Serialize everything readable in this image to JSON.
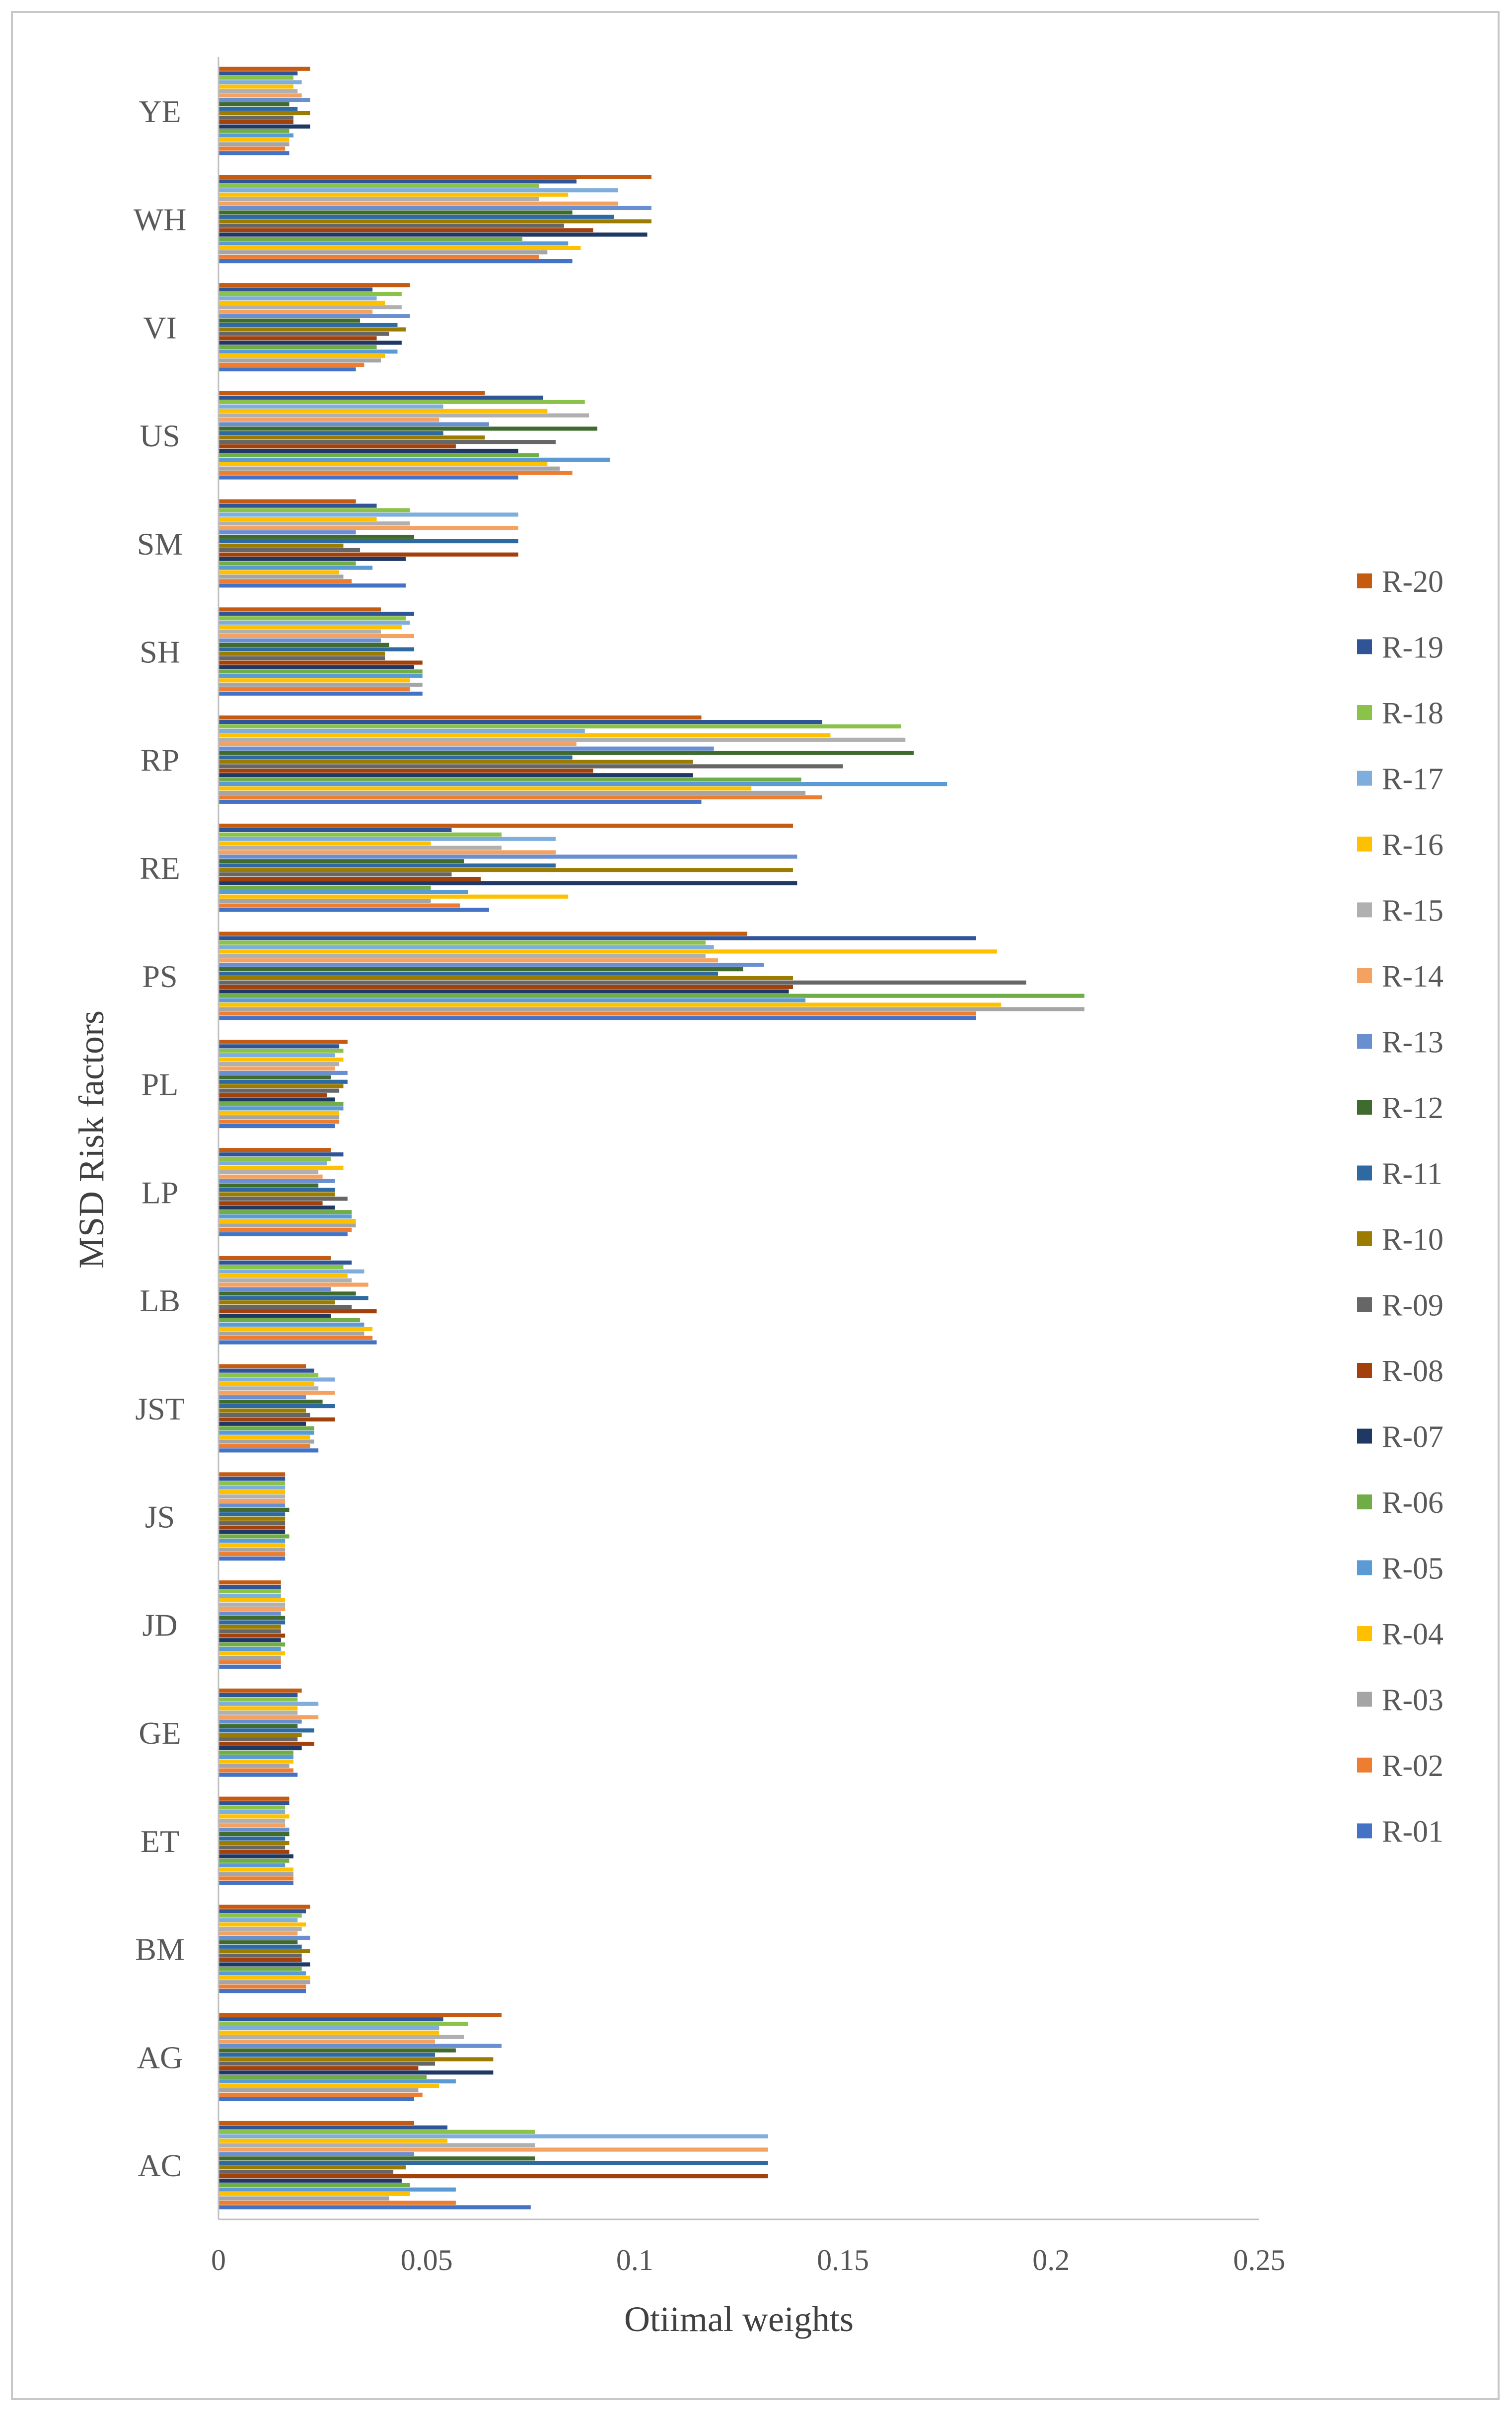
{
  "chart_data": {
    "type": "bar",
    "orientation": "horizontal",
    "title": "",
    "xlabel": "Otiimal weights",
    "ylabel": "MSD Risk factors",
    "xlim": [
      0,
      0.25
    ],
    "xticks": [
      0,
      0.05,
      0.1,
      0.15,
      0.2,
      0.25
    ],
    "xtick_labels": [
      "0",
      "0.05",
      "0.1",
      "0.15",
      "0.2",
      "0.25"
    ],
    "grid": false,
    "legend_position": "right",
    "categories": [
      "YE",
      "WH",
      "VI",
      "US",
      "SM",
      "SH",
      "RP",
      "RE",
      "PS",
      "PL",
      "LP",
      "LB",
      "JST",
      "JS",
      "JD",
      "GE",
      "ET",
      "BM",
      "AG",
      "AC"
    ],
    "series": [
      {
        "name": "R-20",
        "color": "#C55A11",
        "values": [
          0.022,
          0.104,
          0.046,
          0.064,
          0.033,
          0.039,
          0.116,
          0.138,
          0.127,
          0.031,
          0.027,
          0.027,
          0.021,
          0.016,
          0.015,
          0.02,
          0.017,
          0.022,
          0.068,
          0.047
        ]
      },
      {
        "name": "R-19",
        "color": "#2F5597",
        "values": [
          0.019,
          0.086,
          0.037,
          0.078,
          0.038,
          0.047,
          0.145,
          0.056,
          0.182,
          0.029,
          0.03,
          0.032,
          0.023,
          0.016,
          0.015,
          0.019,
          0.017,
          0.021,
          0.054,
          0.055
        ]
      },
      {
        "name": "R-18",
        "color": "#8BC34A",
        "values": [
          0.018,
          0.077,
          0.044,
          0.088,
          0.046,
          0.045,
          0.164,
          0.068,
          0.117,
          0.03,
          0.027,
          0.03,
          0.024,
          0.016,
          0.015,
          0.019,
          0.016,
          0.02,
          0.06,
          0.076
        ]
      },
      {
        "name": "R-17",
        "color": "#7FAEDD",
        "values": [
          0.02,
          0.096,
          0.038,
          0.054,
          0.072,
          0.046,
          0.088,
          0.081,
          0.119,
          0.028,
          0.026,
          0.035,
          0.028,
          0.016,
          0.015,
          0.024,
          0.016,
          0.019,
          0.053,
          0.132
        ]
      },
      {
        "name": "R-16",
        "color": "#FFC000",
        "values": [
          0.018,
          0.084,
          0.04,
          0.079,
          0.038,
          0.044,
          0.147,
          0.051,
          0.187,
          0.03,
          0.03,
          0.031,
          0.023,
          0.016,
          0.016,
          0.019,
          0.017,
          0.021,
          0.053,
          0.055
        ]
      },
      {
        "name": "R-15",
        "color": "#B0B0B0",
        "values": [
          0.019,
          0.077,
          0.044,
          0.089,
          0.046,
          0.039,
          0.165,
          0.068,
          0.117,
          0.029,
          0.024,
          0.032,
          0.024,
          0.016,
          0.016,
          0.019,
          0.016,
          0.02,
          0.059,
          0.076
        ]
      },
      {
        "name": "R-14",
        "color": "#F4A261",
        "values": [
          0.02,
          0.096,
          0.037,
          0.053,
          0.072,
          0.047,
          0.086,
          0.081,
          0.12,
          0.028,
          0.025,
          0.036,
          0.028,
          0.016,
          0.016,
          0.024,
          0.016,
          0.019,
          0.052,
          0.132
        ]
      },
      {
        "name": "R-13",
        "color": "#6A8FD0",
        "values": [
          0.022,
          0.104,
          0.046,
          0.065,
          0.033,
          0.039,
          0.119,
          0.139,
          0.131,
          0.031,
          0.028,
          0.027,
          0.021,
          0.016,
          0.015,
          0.02,
          0.017,
          0.022,
          0.068,
          0.047
        ]
      },
      {
        "name": "R-12",
        "color": "#3F6B2F",
        "values": [
          0.017,
          0.085,
          0.034,
          0.091,
          0.047,
          0.041,
          0.167,
          0.059,
          0.126,
          0.027,
          0.024,
          0.033,
          0.025,
          0.017,
          0.016,
          0.019,
          0.017,
          0.019,
          0.057,
          0.076
        ]
      },
      {
        "name": "R-11",
        "color": "#2E6AA1",
        "values": [
          0.019,
          0.095,
          0.043,
          0.054,
          0.072,
          0.047,
          0.085,
          0.081,
          0.12,
          0.031,
          0.028,
          0.036,
          0.028,
          0.016,
          0.016,
          0.023,
          0.016,
          0.02,
          0.052,
          0.132
        ]
      },
      {
        "name": "R-10",
        "color": "#9C7C00",
        "values": [
          0.022,
          0.104,
          0.045,
          0.064,
          0.03,
          0.04,
          0.114,
          0.138,
          0.138,
          0.03,
          0.028,
          0.028,
          0.021,
          0.016,
          0.015,
          0.02,
          0.017,
          0.022,
          0.066,
          0.045
        ]
      },
      {
        "name": "R-09",
        "color": "#666666",
        "values": [
          0.018,
          0.083,
          0.041,
          0.081,
          0.034,
          0.04,
          0.15,
          0.056,
          0.194,
          0.029,
          0.031,
          0.032,
          0.022,
          0.016,
          0.015,
          0.019,
          0.016,
          0.02,
          0.052,
          0.042
        ]
      },
      {
        "name": "R-08",
        "color": "#A3410C",
        "values": [
          0.018,
          0.09,
          0.038,
          0.057,
          0.072,
          0.049,
          0.09,
          0.063,
          0.138,
          0.026,
          0.025,
          0.038,
          0.028,
          0.016,
          0.016,
          0.023,
          0.017,
          0.02,
          0.048,
          0.132
        ]
      },
      {
        "name": "R-07",
        "color": "#203864",
        "values": [
          0.022,
          0.103,
          0.044,
          0.072,
          0.045,
          0.047,
          0.114,
          0.139,
          0.137,
          0.028,
          0.028,
          0.027,
          0.021,
          0.016,
          0.015,
          0.02,
          0.018,
          0.022,
          0.066,
          0.044
        ]
      },
      {
        "name": "R-06",
        "color": "#70AD47",
        "values": [
          0.017,
          0.073,
          0.038,
          0.077,
          0.033,
          0.049,
          0.14,
          0.051,
          0.208,
          0.03,
          0.032,
          0.034,
          0.023,
          0.017,
          0.016,
          0.018,
          0.017,
          0.02,
          0.05,
          0.046
        ]
      },
      {
        "name": "R-05",
        "color": "#5B9BD5",
        "values": [
          0.018,
          0.084,
          0.043,
          0.094,
          0.037,
          0.049,
          0.175,
          0.06,
          0.141,
          0.03,
          0.032,
          0.035,
          0.023,
          0.016,
          0.015,
          0.018,
          0.016,
          0.021,
          0.057,
          0.057
        ]
      },
      {
        "name": "R-04",
        "color": "#FFC000",
        "values": [
          0.017,
          0.087,
          0.04,
          0.079,
          0.029,
          0.046,
          0.128,
          0.084,
          0.188,
          0.029,
          0.033,
          0.037,
          0.022,
          0.016,
          0.016,
          0.018,
          0.018,
          0.022,
          0.053,
          0.046
        ]
      },
      {
        "name": "R-03",
        "color": "#A5A5A5",
        "values": [
          0.017,
          0.079,
          0.039,
          0.082,
          0.03,
          0.049,
          0.141,
          0.051,
          0.208,
          0.029,
          0.033,
          0.035,
          0.023,
          0.016,
          0.015,
          0.017,
          0.018,
          0.022,
          0.048,
          0.041
        ]
      },
      {
        "name": "R-02",
        "color": "#ED7D31",
        "values": [
          0.016,
          0.077,
          0.035,
          0.085,
          0.032,
          0.046,
          0.145,
          0.058,
          0.182,
          0.029,
          0.032,
          0.037,
          0.022,
          0.016,
          0.015,
          0.018,
          0.018,
          0.021,
          0.049,
          0.057
        ]
      },
      {
        "name": "R-01",
        "color": "#4472C4",
        "values": [
          0.017,
          0.085,
          0.033,
          0.072,
          0.045,
          0.049,
          0.116,
          0.065,
          0.182,
          0.028,
          0.031,
          0.038,
          0.024,
          0.016,
          0.015,
          0.019,
          0.018,
          0.021,
          0.047,
          0.075
        ]
      }
    ]
  }
}
